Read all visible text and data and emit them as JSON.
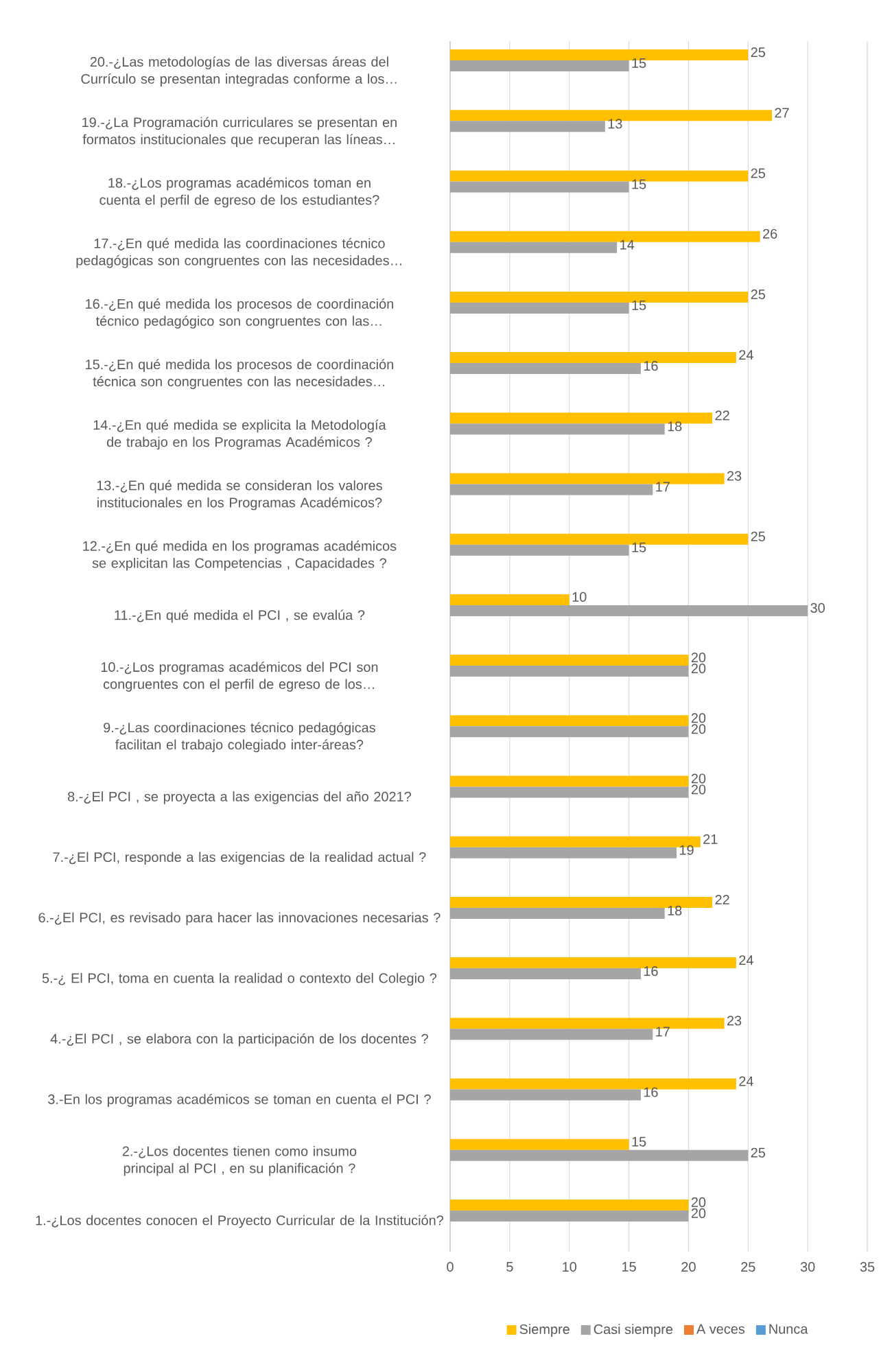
{
  "chart_data": {
    "type": "bar",
    "orientation": "horizontal",
    "categories": [
      "20.-¿Las metodologías de las diversas áreas del Currículo se presentan integradas conforme a los…",
      "19.-¿La Programación curriculares se presentan en formatos institucionales que recuperan las líneas…",
      "18.-¿Los programas académicos toman en cuenta el perfil de egreso de los estudiantes?",
      "17.-¿En qué medida las coordinaciones técnico pedagógicas son congruentes con las necesidades…",
      "16.-¿En qué medida los procesos de coordinación técnico pedagógico son congruentes con las…",
      "15.-¿En qué medida los procesos de coordinación técnica son congruentes con las necesidades…",
      "14.-¿En qué medida se explicita la Metodología de trabajo en los Programas Académicos ?",
      "13.-¿En qué medida se consideran los valores institucionales en los Programas Académicos?",
      "12.-¿En qué medida en los programas académicos se explicitan las Competencias , Capacidades ?",
      "11.-¿En qué medida el PCI , se evalúa ?",
      "10.-¿Los programas académicos del PCI son congruentes con el perfil de egreso de los…",
      "9.-¿Las coordinaciones técnico pedagógicas facilitan el trabajo colegiado inter-áreas?",
      "8.-¿El PCI , se proyecta a las exigencias del año 2021?",
      "7.-¿El PCI, responde a las exigencias de la realidad actual ?",
      "6.-¿El PCI, es revisado para hacer las innovaciones necesarias ?",
      "5.-¿ El PCI, toma en cuenta la realidad o contexto del Colegio ?",
      "4.-¿El PCI , se elabora con la participación de los docentes ?",
      "3.-En los programas académicos se toman en cuenta el PCI ?",
      "2.-¿Los docentes tienen como insumo principal al PCI , en su planificación ?",
      "1.-¿Los docentes conocen el Proyecto Curricular de la Institución?"
    ],
    "series": [
      {
        "name": "Siempre",
        "color": "#ffc000",
        "values": [
          25,
          27,
          25,
          26,
          25,
          24,
          22,
          23,
          25,
          10,
          20,
          20,
          20,
          21,
          22,
          24,
          23,
          24,
          15,
          20
        ],
        "value_labels": [
          "25",
          "27",
          "25",
          "26",
          "25",
          "24",
          "22",
          "23",
          "25",
          "10",
          "20",
          "20",
          "20",
          "21",
          "22",
          "24",
          "23",
          "24",
          "15",
          "20"
        ]
      },
      {
        "name": "Casi siempre",
        "color": "#a5a5a5",
        "values": [
          15,
          13,
          15,
          14,
          15,
          16,
          18,
          17,
          15,
          30,
          20,
          20,
          20,
          19,
          18,
          16,
          17,
          16,
          25,
          20
        ],
        "value_labels": [
          "15",
          "13",
          "15",
          "14",
          "15",
          "16",
          "18",
          "17",
          "15",
          "30",
          "20",
          "20",
          "20",
          "19",
          "18",
          "16",
          "17",
          "16",
          "25",
          "20"
        ]
      },
      {
        "name": "A veces",
        "color": "#ed7d31",
        "values": [
          0,
          0,
          0,
          0,
          0,
          0,
          0,
          0,
          0,
          0,
          0,
          0,
          0,
          0,
          0,
          0,
          0,
          0,
          0,
          0
        ]
      },
      {
        "name": "Nunca",
        "color": "#5b9bd5",
        "values": [
          0,
          0,
          0,
          0,
          0,
          0,
          0,
          0,
          0,
          0,
          0,
          0,
          0,
          0,
          0,
          0,
          0,
          0,
          0,
          0
        ]
      }
    ],
    "xlim": [
      0,
      35
    ],
    "xticks": [
      0,
      5,
      10,
      15,
      20,
      25,
      30,
      35
    ],
    "grid": "x",
    "legend": "bottom"
  }
}
